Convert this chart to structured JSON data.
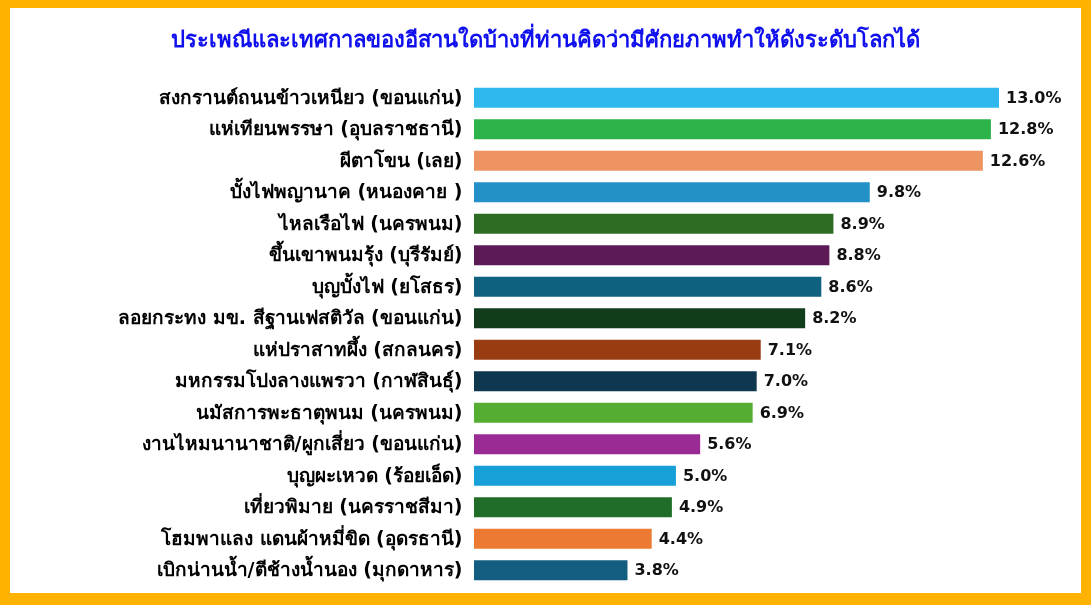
{
  "chart_data": {
    "type": "bar",
    "orientation": "horizontal",
    "title": "ประเพณีและเทศกาลของอีสานใดบ้างที่ท่านคิดว่ามีศักยภาพทำให้ดังระดับโลกได้",
    "categories": [
      "สงกรานต์ถนนข้าวเหนียว (ขอนแก่น)",
      "แห่เทียนพรรษา (อุบลราชธานี)",
      "ผีตาโขน (เลย)",
      "บั้งไฟพญานาค (หนองคาย  )",
      "ไหลเรือไฟ (นครพนม)",
      "ขึ้นเขาพนมรุ้ง (บุรีรัมย์)",
      "บุญบั้งไฟ (ยโสธร)",
      "ลอยกระทง มข. สีฐานเฟสติวัล (ขอนแก่น)",
      "แห่ปราสาทผึ้ง (สกลนคร)",
      "มหกรรมโปงลางแพรวา (กาฬสินธุ์)",
      "นมัสการพะธาตุพนม (นครพนม)",
      "งานไหมนานาชาติ/ผูกเสี่ยว (ขอนแก่น)",
      "บุญผะเหวด (ร้อยเอ็ด)",
      "เที่ยวพิมาย  (นครราชสีมา)",
      "โฮมพาแลง แดนผ้าหมี่ขิด (อุดรธานี)",
      "เบิกน่านน้ำ/ตีช้างน้ำนอง (มุกดาหาร)"
    ],
    "values": [
      13.0,
      12.8,
      12.6,
      9.8,
      8.9,
      8.8,
      8.6,
      8.2,
      7.1,
      7.0,
      6.9,
      5.6,
      5.0,
      4.9,
      4.4,
      3.8
    ],
    "value_labels": [
      "13.0%",
      "12.8%",
      "12.6%",
      "9.8%",
      "8.9%",
      "8.8%",
      "8.6%",
      "8.2%",
      "7.1%",
      "7.0%",
      "6.9%",
      "5.6%",
      "5.0%",
      "4.9%",
      "4.4%",
      "3.8%"
    ],
    "colors": [
      "#2fb8ee",
      "#2db34a",
      "#ee9462",
      "#2390c8",
      "#2e6b23",
      "#5c1a57",
      "#0e617f",
      "#123d1c",
      "#9a3c12",
      "#0f3750",
      "#55ae32",
      "#9b2b94",
      "#17a0d8",
      "#1f6d28",
      "#ec7a32",
      "#135e80"
    ]
  }
}
